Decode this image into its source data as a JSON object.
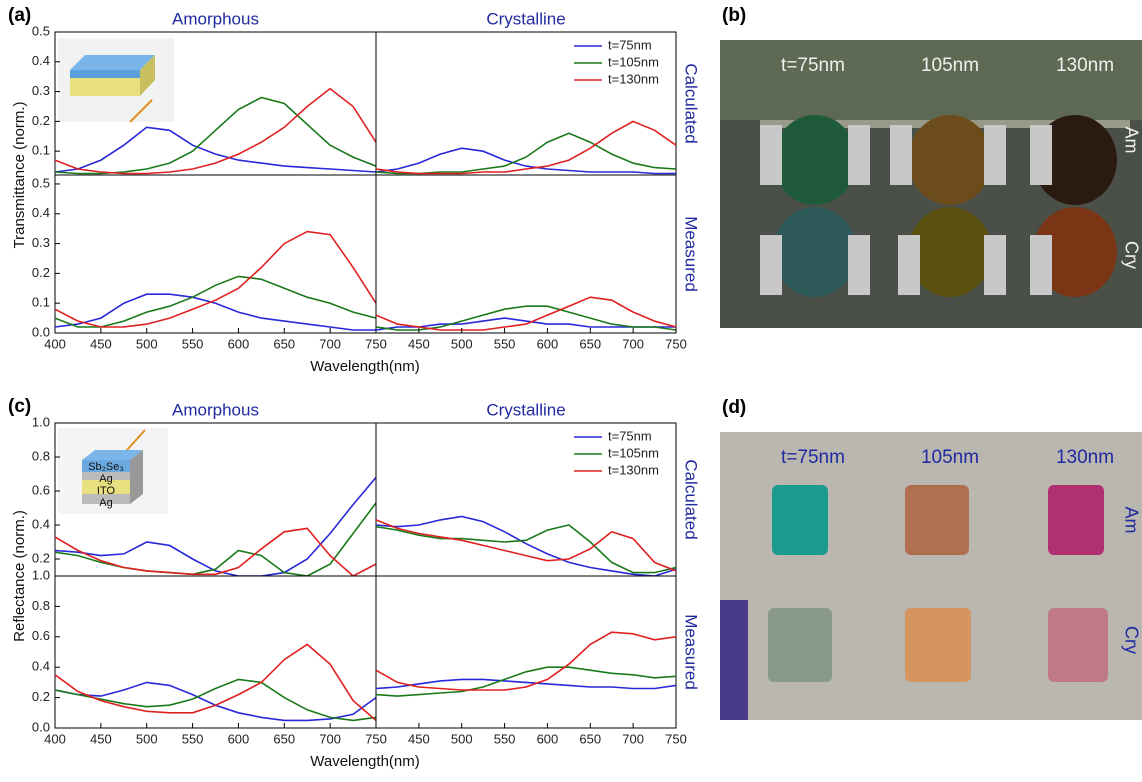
{
  "chart_data": [
    {
      "type": "line",
      "panel_label": "(a)",
      "title": "Amorphous",
      "ylabel": "Transmittance (norm.)",
      "x": [
        400,
        425,
        450,
        475,
        500,
        525,
        550,
        575,
        600,
        625,
        650,
        675,
        700,
        725,
        750
      ],
      "xlim": [
        400,
        750
      ],
      "ylim": [
        0.02,
        0.5
      ],
      "yticks": [
        0.1,
        0.2,
        0.3,
        0.4,
        0.5
      ],
      "series": [
        {
          "color": "#2828d8",
          "values": [
            0.03,
            0.04,
            0.07,
            0.12,
            0.18,
            0.17,
            0.12,
            0.09,
            0.07,
            0.06,
            0.05,
            0.045,
            0.04,
            0.035,
            0.03
          ]
        },
        {
          "color": "#1a7a1a",
          "values": [
            0.03,
            0.025,
            0.025,
            0.03,
            0.04,
            0.06,
            0.1,
            0.17,
            0.24,
            0.28,
            0.26,
            0.19,
            0.12,
            0.08,
            0.05
          ]
        },
        {
          "color": "#e02020",
          "values": [
            0.07,
            0.04,
            0.03,
            0.025,
            0.025,
            0.03,
            0.04,
            0.06,
            0.09,
            0.13,
            0.18,
            0.25,
            0.31,
            0.25,
            0.13
          ]
        }
      ]
    },
    {
      "type": "line",
      "title": "Crystalline",
      "row_label": "Calculated",
      "legend": "upper right",
      "x": [
        400,
        425,
        450,
        475,
        500,
        525,
        550,
        575,
        600,
        625,
        650,
        675,
        700,
        725,
        750
      ],
      "xlim": [
        400,
        750
      ],
      "ylim": [
        0.02,
        0.5
      ],
      "series": [
        {
          "name": "t=75nm",
          "color": "#2828d8",
          "values": [
            0.03,
            0.04,
            0.06,
            0.09,
            0.11,
            0.1,
            0.07,
            0.05,
            0.04,
            0.035,
            0.03,
            0.03,
            0.03,
            0.025,
            0.025
          ]
        },
        {
          "name": "t=105nm",
          "color": "#1a7a1a",
          "values": [
            0.03,
            0.025,
            0.025,
            0.03,
            0.03,
            0.04,
            0.05,
            0.08,
            0.13,
            0.16,
            0.13,
            0.09,
            0.06,
            0.045,
            0.04
          ]
        },
        {
          "name": "t=130nm",
          "color": "#e02020",
          "values": [
            0.04,
            0.03,
            0.025,
            0.025,
            0.025,
            0.03,
            0.03,
            0.04,
            0.05,
            0.07,
            0.11,
            0.16,
            0.2,
            0.17,
            0.12
          ]
        }
      ]
    },
    {
      "type": "line",
      "xlabel": "Wavelength(nm)",
      "x": [
        400,
        425,
        450,
        475,
        500,
        525,
        550,
        575,
        600,
        625,
        650,
        675,
        700,
        725,
        750
      ],
      "xlim": [
        400,
        750
      ],
      "xticks": [
        400,
        450,
        500,
        550,
        600,
        650,
        700,
        750
      ],
      "ylim": [
        0,
        0.53
      ],
      "yticks": [
        {
          "value": 0,
          "label": "0.0"
        },
        0.1,
        0.2,
        0.3,
        0.4,
        0.5
      ],
      "series": [
        {
          "color": "#2828d8",
          "values": [
            0.02,
            0.03,
            0.05,
            0.1,
            0.13,
            0.13,
            0.12,
            0.1,
            0.07,
            0.05,
            0.04,
            0.03,
            0.02,
            0.01,
            0.01
          ]
        },
        {
          "color": "#1a7a1a",
          "values": [
            0.05,
            0.02,
            0.02,
            0.04,
            0.07,
            0.09,
            0.12,
            0.16,
            0.19,
            0.18,
            0.15,
            0.12,
            0.1,
            0.07,
            0.05
          ]
        },
        {
          "color": "#e02020",
          "values": [
            0.08,
            0.04,
            0.02,
            0.02,
            0.03,
            0.05,
            0.08,
            0.11,
            0.15,
            0.22,
            0.3,
            0.34,
            0.33,
            0.22,
            0.1
          ]
        }
      ]
    },
    {
      "type": "line",
      "row_label": "Measured",
      "x": [
        400,
        425,
        450,
        475,
        500,
        525,
        550,
        575,
        600,
        625,
        650,
        675,
        700,
        725,
        750
      ],
      "xlim": [
        400,
        750
      ],
      "xticks": [
        450,
        500,
        550,
        600,
        650,
        700,
        750
      ],
      "ylim": [
        0,
        0.53
      ],
      "series": [
        {
          "color": "#2828d8",
          "values": [
            0.01,
            0.02,
            0.02,
            0.03,
            0.03,
            0.04,
            0.05,
            0.04,
            0.03,
            0.03,
            0.02,
            0.02,
            0.02,
            0.02,
            0.02
          ]
        },
        {
          "color": "#1a7a1a",
          "values": [
            0.02,
            0.01,
            0.01,
            0.02,
            0.04,
            0.06,
            0.08,
            0.09,
            0.09,
            0.07,
            0.05,
            0.03,
            0.02,
            0.02,
            0.01
          ]
        },
        {
          "color": "#e02020",
          "values": [
            0.06,
            0.03,
            0.02,
            0.01,
            0.01,
            0.01,
            0.02,
            0.03,
            0.06,
            0.09,
            0.12,
            0.11,
            0.07,
            0.04,
            0.02
          ]
        }
      ]
    },
    {
      "type": "line",
      "panel_label": "(c)",
      "title": "Amorphous",
      "ylabel": "Reflectance (norm.)",
      "inset_labels": [
        "Sb₂Se₃",
        "Ag",
        "ITO",
        "Ag"
      ],
      "x": [
        400,
        425,
        450,
        475,
        500,
        525,
        550,
        575,
        600,
        625,
        650,
        675,
        700,
        725,
        750
      ],
      "xlim": [
        400,
        750
      ],
      "ylim": [
        0.1,
        1.0
      ],
      "yticks": [
        0.2,
        0.4,
        0.6,
        0.8,
        {
          "value": 1,
          "label": "1.0"
        }
      ],
      "series": [
        {
          "color": "#2828d8",
          "values": [
            0.25,
            0.24,
            0.22,
            0.23,
            0.3,
            0.28,
            0.2,
            0.13,
            0.1,
            0.1,
            0.12,
            0.2,
            0.35,
            0.52,
            0.68
          ]
        },
        {
          "color": "#1a7a1a",
          "values": [
            0.24,
            0.22,
            0.18,
            0.15,
            0.13,
            0.12,
            0.11,
            0.14,
            0.25,
            0.22,
            0.12,
            0.1,
            0.17,
            0.35,
            0.53
          ]
        },
        {
          "color": "#e02020",
          "values": [
            0.33,
            0.25,
            0.19,
            0.15,
            0.13,
            0.12,
            0.11,
            0.11,
            0.15,
            0.26,
            0.36,
            0.38,
            0.22,
            0.1,
            0.17
          ]
        }
      ]
    },
    {
      "type": "line",
      "title": "Crystalline",
      "row_label": "Calculated",
      "legend": "upper right",
      "x": [
        400,
        425,
        450,
        475,
        500,
        525,
        550,
        575,
        600,
        625,
        650,
        675,
        700,
        725,
        750
      ],
      "xlim": [
        400,
        750
      ],
      "ylim": [
        0.1,
        1.0
      ],
      "series": [
        {
          "name": "t=75nm",
          "color": "#2828d8",
          "values": [
            0.4,
            0.39,
            0.4,
            0.43,
            0.45,
            0.42,
            0.36,
            0.29,
            0.23,
            0.18,
            0.15,
            0.13,
            0.11,
            0.1,
            0.14
          ]
        },
        {
          "name": "t=105nm",
          "color": "#1a7a1a",
          "values": [
            0.39,
            0.37,
            0.34,
            0.32,
            0.32,
            0.31,
            0.3,
            0.31,
            0.37,
            0.4,
            0.3,
            0.18,
            0.12,
            0.12,
            0.15
          ]
        },
        {
          "name": "t=130nm",
          "color": "#e02020",
          "values": [
            0.43,
            0.38,
            0.35,
            0.33,
            0.31,
            0.28,
            0.25,
            0.22,
            0.19,
            0.2,
            0.26,
            0.36,
            0.32,
            0.18,
            0.13
          ]
        }
      ]
    },
    {
      "type": "line",
      "xlabel": "Wavelength(nm)",
      "x": [
        400,
        425,
        450,
        475,
        500,
        525,
        550,
        575,
        600,
        625,
        650,
        675,
        700,
        725,
        750
      ],
      "xlim": [
        400,
        750
      ],
      "xticks": [
        400,
        450,
        500,
        550,
        600,
        650,
        700,
        750
      ],
      "ylim": [
        0,
        1.0
      ],
      "yticks": [
        {
          "value": 0,
          "label": "0.0"
        },
        0.2,
        0.4,
        0.6,
        0.8,
        {
          "value": 1,
          "label": "1.0"
        }
      ],
      "series": [
        {
          "color": "#2828d8",
          "values": [
            0.25,
            0.22,
            0.21,
            0.25,
            0.3,
            0.28,
            0.22,
            0.15,
            0.1,
            0.07,
            0.05,
            0.05,
            0.06,
            0.09,
            0.2
          ]
        },
        {
          "color": "#1a7a1a",
          "values": [
            0.25,
            0.22,
            0.19,
            0.16,
            0.14,
            0.15,
            0.19,
            0.26,
            0.32,
            0.3,
            0.2,
            0.12,
            0.07,
            0.05,
            0.07
          ]
        },
        {
          "color": "#e02020",
          "values": [
            0.35,
            0.24,
            0.18,
            0.14,
            0.11,
            0.1,
            0.1,
            0.15,
            0.22,
            0.3,
            0.45,
            0.55,
            0.42,
            0.18,
            0.05
          ]
        }
      ]
    },
    {
      "type": "line",
      "row_label": "Measured",
      "x": [
        400,
        425,
        450,
        475,
        500,
        525,
        550,
        575,
        600,
        625,
        650,
        675,
        700,
        725,
        750
      ],
      "xlim": [
        400,
        750
      ],
      "xticks": [
        450,
        500,
        550,
        600,
        650,
        700,
        750
      ],
      "ylim": [
        0,
        1.0
      ],
      "series": [
        {
          "color": "#2828d8",
          "values": [
            0.26,
            0.27,
            0.29,
            0.31,
            0.32,
            0.32,
            0.31,
            0.3,
            0.29,
            0.28,
            0.27,
            0.27,
            0.26,
            0.26,
            0.28
          ]
        },
        {
          "color": "#1a7a1a",
          "values": [
            0.22,
            0.21,
            0.22,
            0.23,
            0.24,
            0.27,
            0.32,
            0.37,
            0.4,
            0.4,
            0.38,
            0.36,
            0.35,
            0.33,
            0.34
          ]
        },
        {
          "color": "#e02020",
          "values": [
            0.38,
            0.3,
            0.27,
            0.26,
            0.25,
            0.25,
            0.25,
            0.27,
            0.32,
            0.42,
            0.55,
            0.63,
            0.62,
            0.58,
            0.6
          ]
        }
      ]
    }
  ],
  "photos": [
    {
      "label": "(b)",
      "columns": [
        "t=75nm",
        "105nm",
        "130nm"
      ],
      "rows": [
        "Am",
        "Cry"
      ]
    },
    {
      "label": "(d)",
      "columns": [
        "t=75nm",
        "105nm",
        "130nm"
      ],
      "rows": [
        "Am",
        "Cry"
      ]
    }
  ]
}
